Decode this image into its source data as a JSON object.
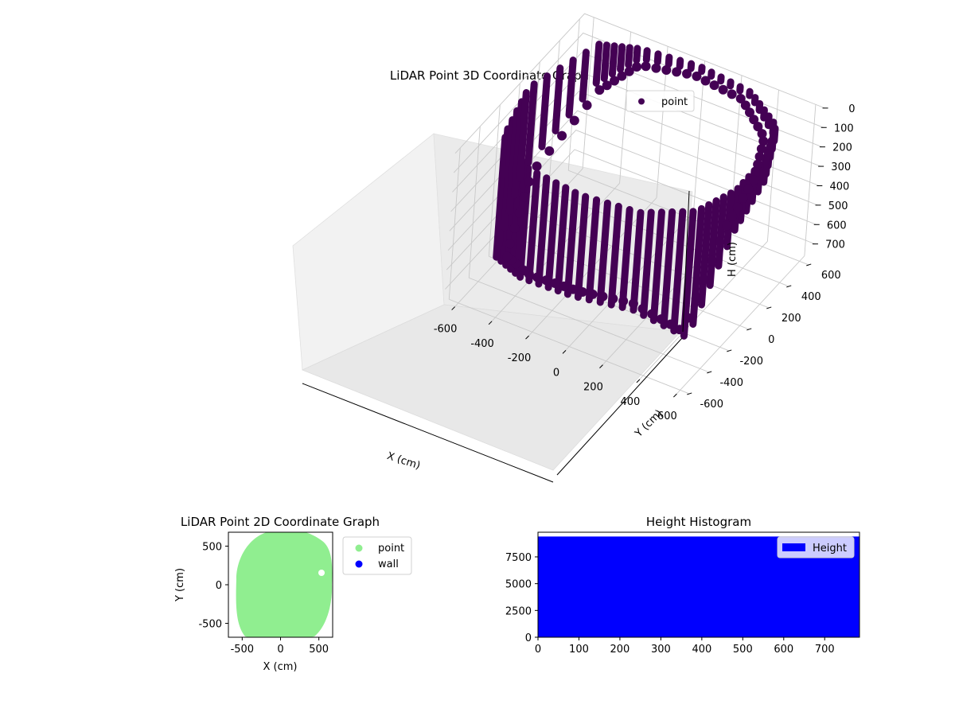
{
  "chart_data": [
    {
      "type": "scatter3d",
      "title": "LiDAR Point 3D Coordinate Graph",
      "xlabel": "X (cm)",
      "ylabel": "Y (cm)",
      "zlabel": "H (cm)",
      "xlim": [
        -650,
        650
      ],
      "ylim": [
        -650,
        650
      ],
      "zlim": [
        0,
        780
      ],
      "z_inverted": true,
      "x_ticks": [
        -600,
        -400,
        -200,
        0,
        200,
        400,
        600
      ],
      "y_ticks": [
        -600,
        -400,
        -200,
        0,
        200,
        400,
        600
      ],
      "z_ticks": [
        0,
        100,
        200,
        300,
        400,
        500,
        600,
        700
      ],
      "legend": {
        "position": "top-right",
        "entries": [
          "point"
        ]
      },
      "grid": true,
      "series": [
        {
          "name": "point",
          "color": "#440154",
          "description_points": [
            {
              "x": -480,
              "y": 480,
              "h": 200
            },
            {
              "x": -300,
              "y": 560,
              "h": 50
            },
            {
              "x": 0,
              "y": 600,
              "h": 20
            },
            {
              "x": 300,
              "y": 560,
              "h": 20
            },
            {
              "x": 520,
              "y": 400,
              "h": 60
            },
            {
              "x": 600,
              "y": 150,
              "h": 120
            },
            {
              "x": 600,
              "y": -150,
              "h": 220
            },
            {
              "x": 520,
              "y": -400,
              "h": 650
            },
            {
              "x": 300,
              "y": -560,
              "h": 500
            },
            {
              "x": 0,
              "y": -600,
              "h": 520
            },
            {
              "x": -300,
              "y": -560,
              "h": 560
            },
            {
              "x": -520,
              "y": -400,
              "h": 620
            },
            {
              "x": -600,
              "y": 0,
              "h": 420
            }
          ]
        }
      ]
    },
    {
      "type": "scatter",
      "title": "LiDAR Point 2D Coordinate Graph",
      "xlabel": "X (cm)",
      "ylabel": "Y (cm)",
      "xlim": [
        -680,
        680
      ],
      "ylim": [
        -680,
        680
      ],
      "x_ticks": [
        -500,
        0,
        500
      ],
      "y_ticks": [
        -500,
        0,
        500
      ],
      "legend": {
        "position": "outside-right",
        "entries": [
          "point",
          "wall"
        ]
      },
      "series": [
        {
          "name": "point",
          "color": "#90ee90"
        },
        {
          "name": "wall",
          "color": "#0000ff"
        }
      ]
    },
    {
      "type": "bar",
      "title": "Height Histogram",
      "xlabel": "",
      "ylabel": "",
      "xlim": [
        0,
        785
      ],
      "ylim": [
        0,
        9800
      ],
      "x_ticks": [
        0,
        100,
        200,
        300,
        400,
        500,
        600,
        700
      ],
      "y_ticks": [
        0,
        2500,
        5000,
        7500
      ],
      "y_tick_labels": [
        "0",
        "2500",
        "5000",
        "7500"
      ],
      "legend": {
        "position": "top-right",
        "entries": [
          "Height"
        ]
      },
      "series": [
        {
          "name": "Height",
          "color": "#0000ff",
          "bins": [
            [
              0,
              785,
              9400
            ]
          ]
        }
      ]
    }
  ]
}
